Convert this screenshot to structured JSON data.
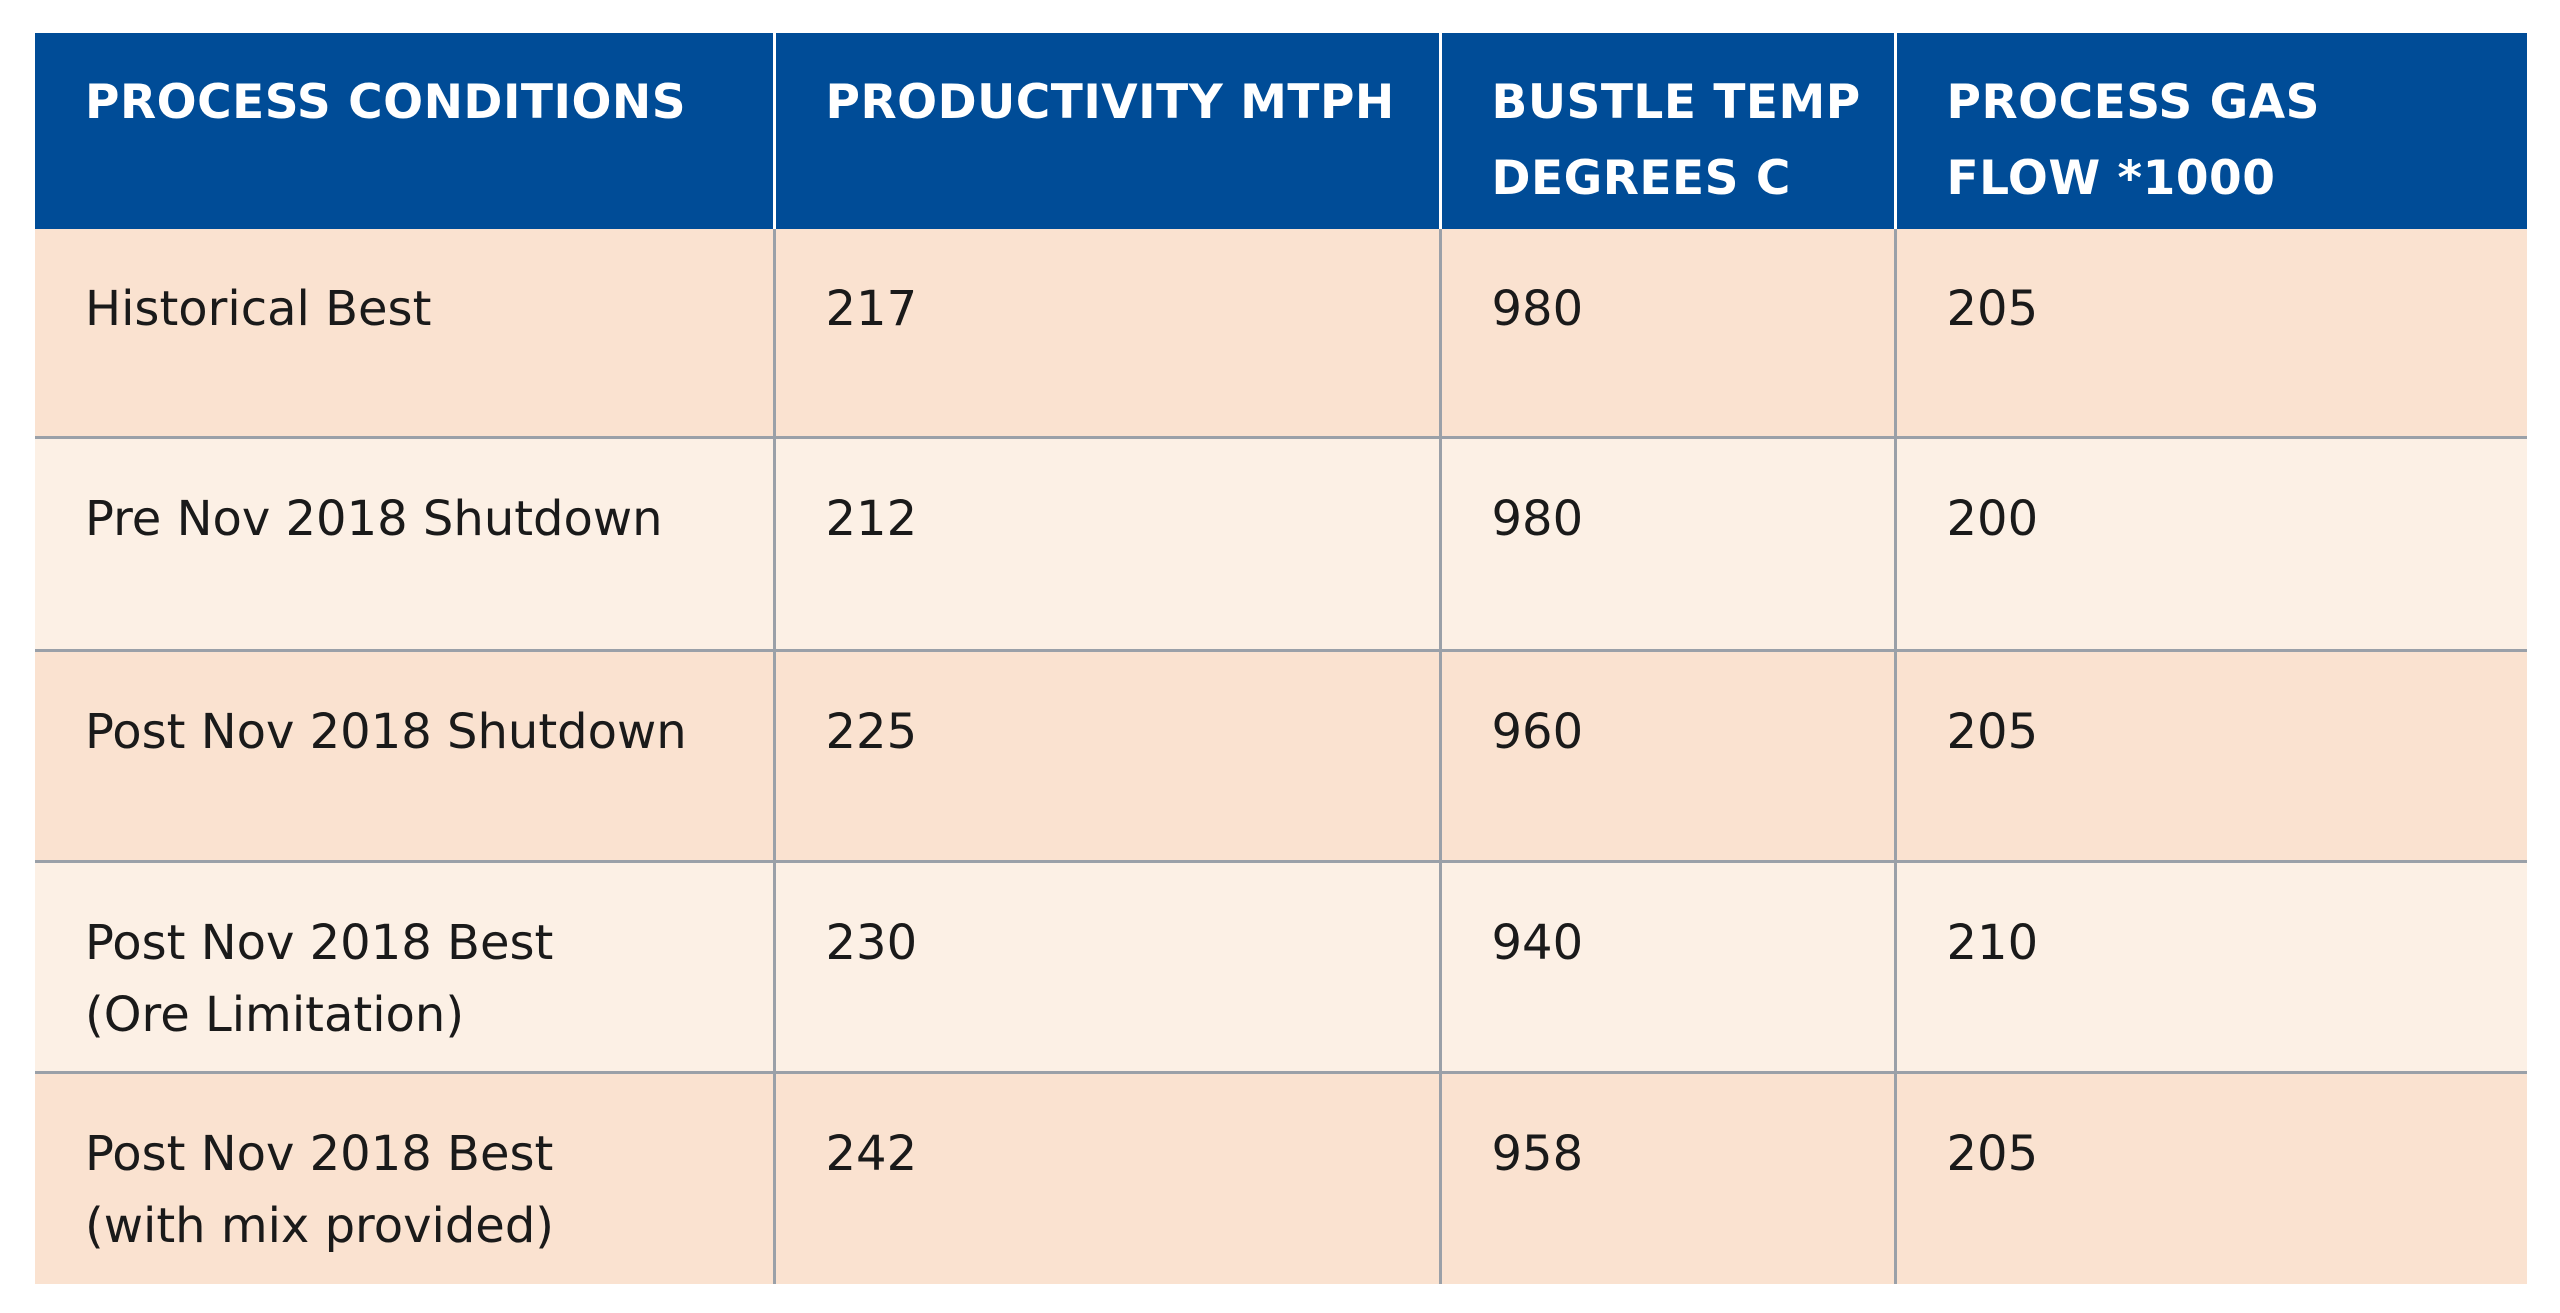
{
  "table": {
    "headers": [
      [
        "PROCESS CONDITIONS"
      ],
      [
        "PRODUCTIVITY MTPH"
      ],
      [
        "BUSTLE TEMP",
        "DEGREES C"
      ],
      [
        "PROCESS GAS",
        "FLOW *1000"
      ]
    ],
    "rows": [
      {
        "condition": [
          "Historical Best"
        ],
        "productivity": "217",
        "bustle_temp": "980",
        "gas_flow": "205"
      },
      {
        "condition": [
          "Pre Nov 2018 Shutdown"
        ],
        "productivity": "212",
        "bustle_temp": "980",
        "gas_flow": "200"
      },
      {
        "condition": [
          "Post Nov 2018 Shutdown"
        ],
        "productivity": "225",
        "bustle_temp": "960",
        "gas_flow": "205"
      },
      {
        "condition": [
          "Post Nov 2018 Best",
          "(Ore Limitation)"
        ],
        "productivity": "230",
        "bustle_temp": "940",
        "gas_flow": "210"
      },
      {
        "condition": [
          "Post Nov 2018 Best",
          "(with mix provided)"
        ],
        "productivity": "242",
        "bustle_temp": "958",
        "gas_flow": "205"
      }
    ]
  },
  "colors": {
    "header_bg": "#004c97",
    "header_text": "#ffffff",
    "row_shade_a": "#fae2d0",
    "row_shade_b": "#fcf0e5",
    "grid_line": "#9aa0a8"
  }
}
